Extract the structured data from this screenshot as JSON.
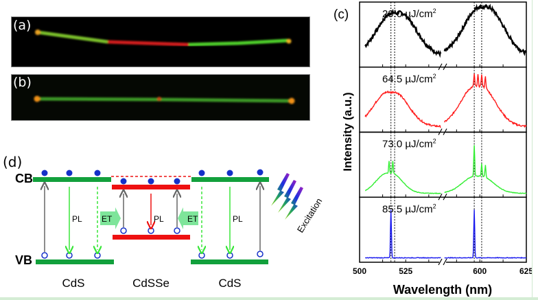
{
  "panels": {
    "a": {
      "label": "(a)"
    },
    "b": {
      "label": "(b)"
    },
    "c": {
      "label": "(c)"
    },
    "d": {
      "label": "(d)"
    }
  },
  "diagram": {
    "cb_label": "CB",
    "vb_label": "VB",
    "materials": [
      "CdS",
      "CdSSe",
      "CdS"
    ],
    "pl_label": "PL",
    "et_label": "ET",
    "excitation_label": "Excitation",
    "colors": {
      "cds": "#12a03c",
      "cdsse": "#ee1111",
      "electron": "#1530c8",
      "pl_green": "#39e639",
      "pl_red": "#ee1111",
      "arrow_gray": "#666666"
    }
  },
  "chart_data": {
    "type": "line",
    "title": "",
    "xlabel": "Wavelength (nm)",
    "ylabel": "Intensity (a.u.)",
    "x_ticks": [
      500,
      525,
      600,
      625
    ],
    "x_segments": [
      [
        500,
        545
      ],
      [
        580,
        625
      ]
    ],
    "axis_break": true,
    "reference_lines_nm": [
      517,
      519,
      597,
      601
    ],
    "grid": false,
    "legend": "none",
    "series": [
      {
        "name": "29.0 μJ/cm²",
        "fluence_label": "29.0",
        "unit": "μJ/cm",
        "unit_sup": "2",
        "color": "#000000",
        "peaks": [
          {
            "center": 520,
            "width": 9,
            "height": 0.75
          },
          {
            "center": 602,
            "width": 9,
            "height": 0.85
          }
        ],
        "baseline": 0.15,
        "lasing": []
      },
      {
        "name": "64.5 μJ/cm²",
        "fluence_label": "64.5",
        "unit": "μJ/cm",
        "unit_sup": "2",
        "color": "#ff1a1a",
        "peaks": [
          {
            "center": 517,
            "width": 8,
            "height": 0.6
          },
          {
            "center": 599,
            "width": 8,
            "height": 0.7
          }
        ],
        "baseline": 0.05,
        "lasing": [
          597,
          599,
          601,
          603
        ]
      },
      {
        "name": "73.0 μJ/cm²",
        "fluence_label": "73.0",
        "unit": "μJ/cm",
        "unit_sup": "2",
        "color": "#33ee33",
        "peaks": [
          {
            "center": 516,
            "width": 6,
            "height": 0.35
          },
          {
            "center": 599,
            "width": 7,
            "height": 0.3
          }
        ],
        "baseline": 0.02,
        "lasing": [
          516,
          518,
          597,
          601,
          603
        ]
      },
      {
        "name": "85.5 μJ/cm²",
        "fluence_label": "85.5",
        "unit": "μJ/cm",
        "unit_sup": "2",
        "color": "#1a1aee",
        "peaks": [],
        "baseline": 0.03,
        "lasing": [
          517,
          597
        ]
      }
    ],
    "lasing_main_peaks_nm": [
      517,
      597
    ]
  }
}
